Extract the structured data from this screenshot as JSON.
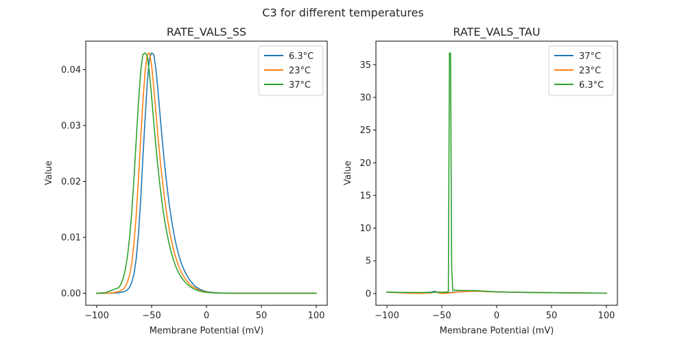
{
  "figure": {
    "suptitle": "C3 for different temperatures"
  },
  "colors": {
    "blue": "#1f77b4",
    "orange": "#ff7f0e",
    "green": "#2ca02c"
  },
  "chart_data": [
    {
      "type": "line",
      "title": "RATE_VALS_SS",
      "xlabel": "Membrane Potential (mV)",
      "ylabel": "Value",
      "xlim": [
        -110,
        110
      ],
      "ylim": [
        -0.00215,
        0.0451
      ],
      "xticks": [
        -100,
        -50,
        0,
        50,
        100
      ],
      "xtick_labels": [
        "−100",
        "−50",
        "0",
        "50",
        "100"
      ],
      "yticks": [
        0.0,
        0.01,
        0.02,
        0.03,
        0.04
      ],
      "ytick_labels": [
        "0.00",
        "0.01",
        "0.02",
        "0.03",
        "0.04"
      ],
      "grid": false,
      "legend_position": "top-right",
      "series": [
        {
          "name": "6.3°C",
          "color": "#1f77b4",
          "x": [
            -100,
            -90,
            -85,
            -80,
            -75,
            -72,
            -70,
            -68,
            -66,
            -64,
            -62,
            -60,
            -58,
            -56,
            -54,
            -52,
            -50,
            -48,
            -46,
            -44,
            -42,
            -40,
            -38,
            -36,
            -34,
            -32,
            -30,
            -28,
            -26,
            -24,
            -22,
            -20,
            -18,
            -15,
            -12,
            -10,
            -6,
            -2,
            0,
            5,
            10,
            15,
            20,
            30,
            40,
            50,
            60,
            70,
            80,
            90,
            100
          ],
          "y": [
            0.0,
            0.0,
            5e-05,
            0.0001,
            0.0003,
            0.0006,
            0.0011,
            0.002,
            0.0035,
            0.0062,
            0.0105,
            0.0165,
            0.024,
            0.031,
            0.0375,
            0.042,
            0.043,
            0.0427,
            0.04,
            0.0358,
            0.0312,
            0.0268,
            0.0228,
            0.0192,
            0.016,
            0.0133,
            0.011,
            0.009,
            0.0074,
            0.006,
            0.0049,
            0.004,
            0.0032,
            0.0023,
            0.0016,
            0.0012,
            0.0007,
            0.0004,
            0.0003,
            0.00015,
            8e-05,
            4e-05,
            2e-05,
            0.0,
            0.0,
            0.0,
            0.0,
            0.0,
            0.0,
            0.0,
            0.0
          ]
        },
        {
          "name": "23°C",
          "color": "#ff7f0e",
          "x": [
            -100,
            -90,
            -85,
            -80,
            -76,
            -74,
            -72,
            -70,
            -68,
            -66,
            -64,
            -62,
            -60,
            -58,
            -56,
            -54,
            -52,
            -50,
            -48,
            -46,
            -44,
            -42,
            -40,
            -38,
            -36,
            -34,
            -32,
            -30,
            -28,
            -26,
            -24,
            -22,
            -20,
            -18,
            -15,
            -12,
            -10,
            -6,
            -2,
            0,
            5,
            10,
            15,
            20,
            30,
            40,
            50,
            60,
            70,
            80,
            90,
            100
          ],
          "y": [
            0.0,
            0.0,
            0.0001,
            0.0003,
            0.0007,
            0.0012,
            0.002,
            0.0033,
            0.0055,
            0.009,
            0.014,
            0.0205,
            0.0275,
            0.034,
            0.0395,
            0.0427,
            0.043,
            0.0408,
            0.0368,
            0.0322,
            0.0277,
            0.0235,
            0.0199,
            0.0167,
            0.0139,
            0.0115,
            0.0095,
            0.0078,
            0.0064,
            0.0052,
            0.0042,
            0.0034,
            0.0028,
            0.0022,
            0.0016,
            0.0011,
            0.0009,
            0.0005,
            0.0003,
            0.0002,
            0.0001,
            6e-05,
            3e-05,
            1e-05,
            0.0,
            0.0,
            0.0,
            0.0,
            0.0,
            0.0,
            0.0,
            0.0
          ]
        },
        {
          "name": "37°C",
          "color": "#2ca02c",
          "x": [
            -100,
            -92,
            -88,
            -84,
            -80,
            -78,
            -76,
            -74,
            -72,
            -70,
            -68,
            -66,
            -64,
            -62,
            -60,
            -58,
            -56,
            -54,
            -52,
            -50,
            -48,
            -46,
            -44,
            -42,
            -40,
            -38,
            -36,
            -34,
            -32,
            -30,
            -28,
            -26,
            -24,
            -22,
            -20,
            -18,
            -15,
            -12,
            -10,
            -6,
            -2,
            0,
            5,
            10,
            15,
            20,
            30,
            40,
            50,
            60,
            70,
            80,
            90,
            100
          ],
          "y": [
            0.0,
            0.0001,
            0.0004,
            0.0007,
            0.001,
            0.0016,
            0.0026,
            0.0042,
            0.0066,
            0.01,
            0.0148,
            0.0208,
            0.0275,
            0.034,
            0.0395,
            0.0427,
            0.043,
            0.0425,
            0.0395,
            0.0352,
            0.0305,
            0.0261,
            0.0221,
            0.0186,
            0.0155,
            0.0129,
            0.0107,
            0.0088,
            0.0072,
            0.0059,
            0.0048,
            0.0039,
            0.0032,
            0.0026,
            0.0021,
            0.0017,
            0.0012,
            0.0008,
            0.0006,
            0.0004,
            0.0002,
            0.00015,
            8e-05,
            4e-05,
            2e-05,
            1e-05,
            0.0,
            0.0,
            0.0,
            0.0,
            0.0,
            0.0,
            0.0,
            0.0
          ]
        }
      ]
    },
    {
      "type": "line",
      "title": "RATE_VALS_TAU",
      "xlabel": "Membrane Potential (mV)",
      "ylabel": "Value",
      "xlim": [
        -110,
        110
      ],
      "ylim": [
        -1.8,
        38.6
      ],
      "xticks": [
        -100,
        -50,
        0,
        50,
        100
      ],
      "xtick_labels": [
        "−100",
        "−50",
        "0",
        "50",
        "100"
      ],
      "yticks": [
        0,
        5,
        10,
        15,
        20,
        25,
        30,
        35
      ],
      "ytick_labels": [
        "0",
        "5",
        "10",
        "15",
        "20",
        "25",
        "30",
        "35"
      ],
      "grid": false,
      "legend_position": "top-right",
      "series": [
        {
          "name": "37°C",
          "color": "#1f77b4",
          "x": [
            -100,
            -80,
            -70,
            -60,
            -56,
            -54,
            -52,
            -50,
            -45,
            -40,
            -30,
            -20,
            -10,
            0,
            20,
            50,
            100
          ],
          "y": [
            0.2,
            0.12,
            0.1,
            0.2,
            0.35,
            0.15,
            0.05,
            0.05,
            0.1,
            0.2,
            0.3,
            0.35,
            0.3,
            0.25,
            0.18,
            0.12,
            0.05
          ]
        },
        {
          "name": "23°C",
          "color": "#ff7f0e",
          "x": [
            -100,
            -80,
            -70,
            -60,
            -56,
            -54,
            -52,
            -50,
            -45,
            -40,
            -30,
            -20,
            -10,
            0,
            20,
            50,
            100
          ],
          "y": [
            0.2,
            0.05,
            0.02,
            0.1,
            0.25,
            0.2,
            0.05,
            0.0,
            0.05,
            0.15,
            0.3,
            0.35,
            0.3,
            0.25,
            0.18,
            0.12,
            0.05
          ]
        },
        {
          "name": "6.3°C",
          "color": "#2ca02c",
          "x": [
            -100,
            -80,
            -60,
            -55,
            -50,
            -46,
            -44,
            -43,
            -42,
            -41,
            -40,
            -38,
            -30,
            -20,
            -10,
            0,
            20,
            50,
            100
          ],
          "y": [
            0.2,
            0.15,
            0.15,
            0.2,
            0.2,
            0.2,
            0.3,
            36.8,
            36.8,
            4.0,
            0.5,
            0.5,
            0.45,
            0.45,
            0.35,
            0.25,
            0.18,
            0.12,
            0.05
          ]
        }
      ]
    }
  ]
}
